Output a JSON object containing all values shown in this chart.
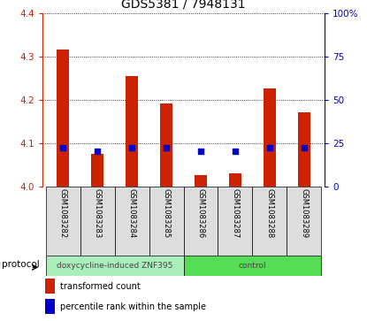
{
  "title": "GDS5381 / 7948131",
  "samples": [
    "GSM1083282",
    "GSM1083283",
    "GSM1083284",
    "GSM1083285",
    "GSM1083286",
    "GSM1083287",
    "GSM1083288",
    "GSM1083289"
  ],
  "transformed_count": [
    4.315,
    4.075,
    4.255,
    4.19,
    4.025,
    4.03,
    4.225,
    4.17
  ],
  "percentile_rank": [
    22,
    20,
    22,
    22,
    20,
    20,
    22,
    22
  ],
  "bar_bottom": 4.0,
  "ylim_left": [
    4.0,
    4.4
  ],
  "ylim_right": [
    0,
    100
  ],
  "yticks_left": [
    4.0,
    4.1,
    4.2,
    4.3,
    4.4
  ],
  "yticks_right": [
    0,
    25,
    50,
    75,
    100
  ],
  "bar_color": "#cc2200",
  "dot_color": "#0000cc",
  "protocol_groups": [
    {
      "label": "doxycycline-induced ZNF395",
      "indices": [
        0,
        1,
        2,
        3
      ],
      "color": "#aaeebb"
    },
    {
      "label": "control",
      "indices": [
        4,
        5,
        6,
        7
      ],
      "color": "#55dd55"
    }
  ],
  "tick_label_color_left": "#cc2200",
  "tick_label_color_right": "#0000cc",
  "bar_width": 0.35,
  "dot_size": 25,
  "title_fontsize": 10,
  "axis_fontsize": 8,
  "tick_fontsize": 7.5,
  "sample_fontsize": 6,
  "proto_fontsize": 6.5,
  "legend_fontsize": 7,
  "sample_box_color": "#dddddd"
}
